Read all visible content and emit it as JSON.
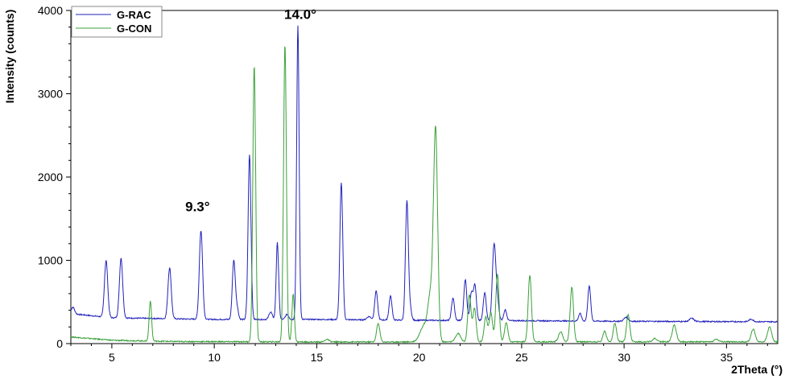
{
  "chart_data": {
    "type": "line",
    "title": "",
    "xlabel": "2Theta (°)",
    "ylabel": "Intensity (counts)",
    "xlim": [
      3,
      37.5
    ],
    "ylim": [
      0,
      4000
    ],
    "xticks": [
      5,
      10,
      15,
      20,
      25,
      30,
      35
    ],
    "yticks": [
      0,
      1000,
      2000,
      3000,
      4000
    ],
    "grid": false,
    "legend": "top-left",
    "annotations": [
      {
        "text": "9.3°",
        "x": 9.3,
        "y": 1340
      },
      {
        "text": "14.0°",
        "x": 14.0,
        "y": 3850
      }
    ],
    "series": [
      {
        "name": "G-RAC",
        "color": "#2222bb",
        "baseline": [
          [
            3,
            360
          ],
          [
            5,
            310
          ],
          [
            10,
            290
          ],
          [
            15,
            290
          ],
          [
            20,
            280
          ],
          [
            25,
            275
          ],
          [
            30,
            268
          ],
          [
            37.5,
            262
          ]
        ],
        "peaks": [
          [
            3.1,
            80,
            0.08
          ],
          [
            4.72,
            680,
            0.08
          ],
          [
            5.45,
            720,
            0.08
          ],
          [
            7.82,
            610,
            0.08
          ],
          [
            9.35,
            1060,
            0.08
          ],
          [
            10.95,
            700,
            0.07
          ],
          [
            11.1,
            150,
            0.07
          ],
          [
            11.72,
            1980,
            0.07
          ],
          [
            12.75,
            90,
            0.08
          ],
          [
            13.08,
            920,
            0.06
          ],
          [
            13.55,
            60,
            0.08
          ],
          [
            14.08,
            3530,
            0.06
          ],
          [
            16.2,
            1640,
            0.07
          ],
          [
            17.55,
            40,
            0.1
          ],
          [
            17.9,
            350,
            0.07
          ],
          [
            18.6,
            290,
            0.07
          ],
          [
            19.4,
            1420,
            0.07
          ],
          [
            19.55,
            150,
            0.07
          ],
          [
            21.65,
            270,
            0.07
          ],
          [
            22.25,
            490,
            0.07
          ],
          [
            22.55,
            330,
            0.07
          ],
          [
            22.72,
            420,
            0.07
          ],
          [
            23.2,
            340,
            0.07
          ],
          [
            23.65,
            880,
            0.08
          ],
          [
            23.8,
            270,
            0.08
          ],
          [
            24.2,
            130,
            0.07
          ],
          [
            27.85,
            90,
            0.07
          ],
          [
            28.3,
            420,
            0.07
          ],
          [
            30.1,
            50,
            0.1
          ],
          [
            33.3,
            40,
            0.1
          ],
          [
            36.2,
            30,
            0.1
          ]
        ]
      },
      {
        "name": "G-CON",
        "color": "#3aa03a",
        "baseline": [
          [
            3,
            80
          ],
          [
            5,
            40
          ],
          [
            8,
            25
          ],
          [
            15,
            20
          ],
          [
            20,
            20
          ],
          [
            25,
            22
          ],
          [
            30,
            22
          ],
          [
            35,
            22
          ],
          [
            37.5,
            20
          ]
        ],
        "peaks": [
          [
            6.88,
            480,
            0.06
          ],
          [
            11.95,
            3320,
            0.07
          ],
          [
            13.45,
            3570,
            0.07
          ],
          [
            13.85,
            580,
            0.06
          ],
          [
            15.5,
            30,
            0.1
          ],
          [
            18.0,
            220,
            0.08
          ],
          [
            20.25,
            200,
            0.2
          ],
          [
            20.55,
            500,
            0.12
          ],
          [
            20.8,
            2540,
            0.1
          ],
          [
            21.9,
            100,
            0.12
          ],
          [
            22.45,
            560,
            0.08
          ],
          [
            22.7,
            400,
            0.08
          ],
          [
            23.25,
            300,
            0.08
          ],
          [
            23.5,
            350,
            0.08
          ],
          [
            23.82,
            810,
            0.08
          ],
          [
            24.25,
            230,
            0.08
          ],
          [
            25.4,
            800,
            0.08
          ],
          [
            26.9,
            120,
            0.1
          ],
          [
            27.45,
            660,
            0.08
          ],
          [
            29.05,
            130,
            0.08
          ],
          [
            29.55,
            220,
            0.08
          ],
          [
            30.2,
            320,
            0.08
          ],
          [
            31.5,
            40,
            0.1
          ],
          [
            32.45,
            200,
            0.1
          ],
          [
            34.5,
            30,
            0.1
          ],
          [
            36.3,
            150,
            0.1
          ],
          [
            37.1,
            180,
            0.1
          ]
        ]
      }
    ]
  }
}
